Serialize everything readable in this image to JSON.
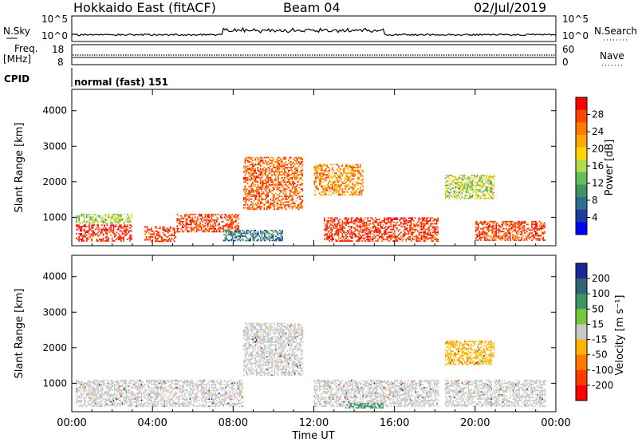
{
  "header": {
    "station": "Hokkaido East (fitACF)",
    "beam": "Beam 04",
    "date": "02/Jul/2019"
  },
  "strips": {
    "nsky_label": "N.Sky",
    "nsky_top": "10^5",
    "nsky_bottom": "10^0",
    "nsearch_label": "N.Search",
    "nsearch_top": "10^5",
    "nsearch_bottom": "10^0",
    "freq_label": "Freq.",
    "freq_unit": "[MHz]",
    "freq_top": "18",
    "freq_bottom": "8",
    "nave_label": "Nave",
    "nave_top": "60",
    "nave_bottom": "0",
    "cpid_label": "CPID",
    "cpid_value": "normal (fast) 151"
  },
  "power_colorbar": {
    "label": "Power [dB]",
    "ticks": [
      "28",
      "24",
      "20",
      "16",
      "12",
      "8",
      "4"
    ],
    "colors": [
      "#ff0000",
      "#ff4500",
      "#ff7800",
      "#ffaa00",
      "#ffd700",
      "#b4dc46",
      "#64be5a",
      "#3c9664",
      "#2d6e8c",
      "#1e3ca0",
      "#0000ff"
    ]
  },
  "velocity_colorbar": {
    "label": "Velocity [m s⁻¹]",
    "ticks": [
      "200",
      "100",
      "50",
      "15",
      "-15",
      "-50",
      "-100",
      "-200"
    ],
    "colors": [
      "#1a2896",
      "#2f6478",
      "#3c9664",
      "#78c83c",
      "#c8c8c8",
      "#ffb400",
      "#ff7800",
      "#ff3c00",
      "#ff0000"
    ]
  },
  "chart_data": [
    {
      "type": "heatmap",
      "panel": "power",
      "ylabel": "Slant Range [km]",
      "y_ticks": [
        1000,
        2000,
        3000,
        4000
      ],
      "ylim": [
        200,
        4600
      ],
      "x_ticks": [
        "00:00",
        "04:00",
        "08:00",
        "12:00",
        "16:00",
        "20:00",
        "00:00"
      ],
      "xlim_hours": [
        0,
        24
      ],
      "bands": [
        {
          "t0": 0.2,
          "t1": 3.0,
          "r0": 300,
          "r1": 800,
          "power": 28
        },
        {
          "t0": 0.2,
          "t1": 3.0,
          "r0": 800,
          "r1": 1100,
          "power": 14
        },
        {
          "t0": 3.6,
          "t1": 5.2,
          "r0": 300,
          "r1": 750,
          "power": 27
        },
        {
          "t0": 5.2,
          "t1": 8.3,
          "r0": 550,
          "r1": 1100,
          "power": 26
        },
        {
          "t0": 7.5,
          "t1": 10.5,
          "r0": 300,
          "r1": 650,
          "power": 8
        },
        {
          "t0": 8.5,
          "t1": 11.5,
          "r0": 1200,
          "r1": 2700,
          "power": 24
        },
        {
          "t0": 12.5,
          "t1": 18.2,
          "r0": 300,
          "r1": 1000,
          "power": 27
        },
        {
          "t0": 12.0,
          "t1": 14.5,
          "r0": 1600,
          "r1": 2500,
          "power": 22
        },
        {
          "t0": 18.5,
          "t1": 21.0,
          "r0": 1500,
          "r1": 2200,
          "power": 15
        },
        {
          "t0": 20.0,
          "t1": 23.5,
          "r0": 300,
          "r1": 900,
          "power": 26
        }
      ]
    },
    {
      "type": "heatmap",
      "panel": "velocity",
      "ylabel": "Slant Range [km]",
      "xlabel": "Time UT",
      "y_ticks": [
        1000,
        2000,
        3000,
        4000
      ],
      "ylim": [
        200,
        4600
      ],
      "x_ticks": [
        "00:00",
        "04:00",
        "08:00",
        "12:00",
        "16:00",
        "20:00",
        "00:00"
      ],
      "xlim_hours": [
        0,
        24
      ],
      "bands": [
        {
          "t0": 0.2,
          "t1": 8.5,
          "r0": 300,
          "r1": 1100,
          "velocity": 0
        },
        {
          "t0": 8.5,
          "t1": 11.5,
          "r0": 1200,
          "r1": 2700,
          "velocity": 0
        },
        {
          "t0": 12.0,
          "t1": 18.2,
          "r0": 300,
          "r1": 1100,
          "velocity": 0
        },
        {
          "t0": 13.5,
          "t1": 15.5,
          "r0": 250,
          "r1": 450,
          "velocity": 40
        },
        {
          "t0": 18.5,
          "t1": 23.5,
          "r0": 300,
          "r1": 1100,
          "velocity": 0
        },
        {
          "t0": 18.5,
          "t1": 21.0,
          "r0": 1500,
          "r1": 2200,
          "velocity": -20
        }
      ]
    }
  ]
}
